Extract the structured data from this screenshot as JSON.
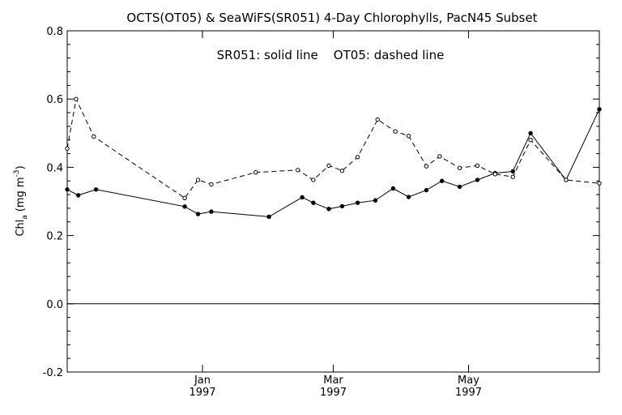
{
  "chart_data": {
    "type": "line",
    "title": "OCTS(OT05) & SeaWiFS(SR051) 4-Day Chlorophylls, PacN45 Subset",
    "annotation": "SR051: solid line    OT05: dashed line",
    "ylabel": "Chl_a (mg m^-3)",
    "ylabel_parts": {
      "main": "Chl",
      "sub": "a",
      "unit": "(mg m",
      "exp": "-3",
      "close": ")"
    },
    "xlabel": "",
    "ylim": [
      -0.2,
      0.8
    ],
    "xlim": [
      "1996-11-01",
      "1997-06-29"
    ],
    "yticks": [
      -0.2,
      0.0,
      0.2,
      0.4,
      0.6,
      0.8
    ],
    "ytick_labels": [
      "-0.2",
      "0.0",
      "0.2",
      "0.4",
      "0.6",
      "0.8"
    ],
    "xticks": [
      {
        "date": "1997-01-01",
        "month": "Jan",
        "year": "1997"
      },
      {
        "date": "1997-03-01",
        "month": "Mar",
        "year": "1997"
      },
      {
        "date": "1997-05-01",
        "month": "May",
        "year": "1997"
      }
    ],
    "zero_line": 0.0,
    "grid": false,
    "series": [
      {
        "name": "SR051",
        "style": "solid",
        "points": [
          [
            "1996-11-01",
            0.335
          ],
          [
            "1996-11-06",
            0.318
          ],
          [
            "1996-11-14",
            0.335
          ],
          [
            "1996-12-24",
            0.285
          ],
          [
            "1996-12-30",
            0.263
          ],
          [
            "1997-01-05",
            0.27
          ],
          [
            "1997-01-31",
            0.255
          ],
          [
            "1997-02-15",
            0.312
          ],
          [
            "1997-02-20",
            0.296
          ],
          [
            "1997-02-27",
            0.278
          ],
          [
            "1997-03-05",
            0.286
          ],
          [
            "1997-03-12",
            0.296
          ],
          [
            "1997-03-20",
            0.303
          ],
          [
            "1997-03-28",
            0.338
          ],
          [
            "1997-04-04",
            0.313
          ],
          [
            "1997-04-12",
            0.333
          ],
          [
            "1997-04-19",
            0.36
          ],
          [
            "1997-04-27",
            0.343
          ],
          [
            "1997-05-05",
            0.363
          ],
          [
            "1997-05-13",
            0.383
          ],
          [
            "1997-05-21",
            0.388
          ],
          [
            "1997-05-29",
            0.5
          ],
          [
            "1997-06-14",
            0.363
          ],
          [
            "1997-06-29",
            0.57
          ]
        ]
      },
      {
        "name": "OT05",
        "style": "dashed",
        "points": [
          [
            "1996-11-01",
            0.455
          ],
          [
            "1996-11-05",
            0.6
          ],
          [
            "1996-11-13",
            0.49
          ],
          [
            "1996-12-24",
            0.31
          ],
          [
            "1996-12-30",
            0.363
          ],
          [
            "1997-01-05",
            0.35
          ],
          [
            "1997-01-25",
            0.385
          ],
          [
            "1997-02-13",
            0.392
          ],
          [
            "1997-02-20",
            0.363
          ],
          [
            "1997-02-27",
            0.405
          ],
          [
            "1997-03-05",
            0.39
          ],
          [
            "1997-03-12",
            0.43
          ],
          [
            "1997-03-21",
            0.54
          ],
          [
            "1997-03-29",
            0.505
          ],
          [
            "1997-04-04",
            0.492
          ],
          [
            "1997-04-12",
            0.403
          ],
          [
            "1997-04-18",
            0.432
          ],
          [
            "1997-04-27",
            0.398
          ],
          [
            "1997-05-05",
            0.405
          ],
          [
            "1997-05-13",
            0.38
          ],
          [
            "1997-05-21",
            0.372
          ],
          [
            "1997-05-29",
            0.48
          ],
          [
            "1997-06-14",
            0.363
          ],
          [
            "1997-06-29",
            0.353
          ]
        ]
      }
    ]
  }
}
